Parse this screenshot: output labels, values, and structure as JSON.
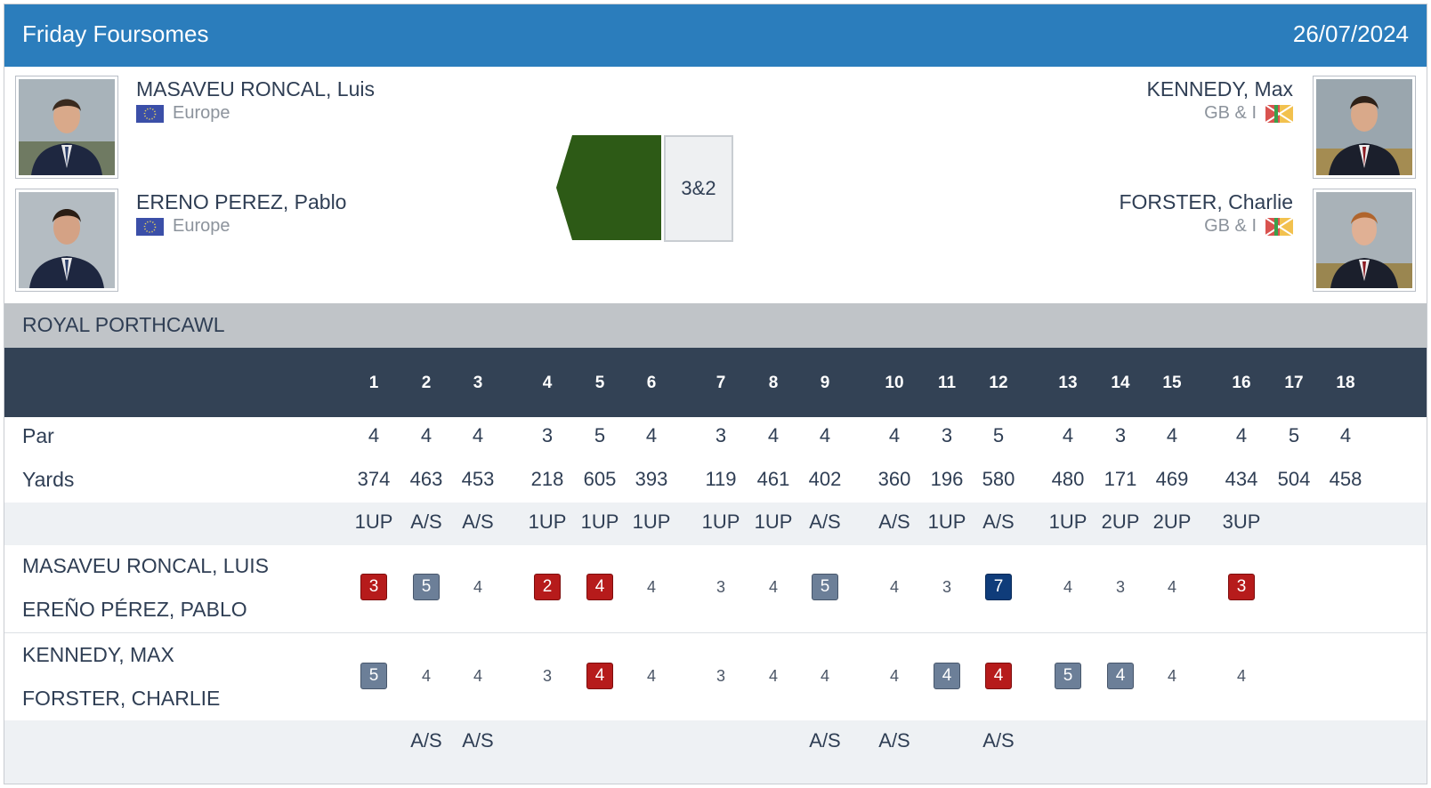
{
  "header": {
    "title": "Friday Foursomes",
    "date": "26/07/2024"
  },
  "team_left": {
    "players": [
      {
        "name": "MASAVEU RONCAL, Luis",
        "team": "Europe",
        "flag": "eu-flag"
      },
      {
        "name": "ERENO PEREZ, Pablo",
        "team": "Europe",
        "flag": "eu-flag"
      }
    ]
  },
  "team_right": {
    "players": [
      {
        "name": "KENNEDY, Max",
        "team": "GB & I",
        "flag": "gbi-flag"
      },
      {
        "name": "FORSTER, Charlie",
        "team": "GB & I",
        "flag": "gbi-flag"
      }
    ]
  },
  "result": {
    "text": "3&2",
    "color": "#2d5a16"
  },
  "course": "ROYAL PORTHCAWL",
  "scorecard": {
    "holes": [
      "1",
      "2",
      "3",
      "4",
      "5",
      "6",
      "7",
      "8",
      "9",
      "10",
      "11",
      "12",
      "13",
      "14",
      "15",
      "16",
      "17",
      "18"
    ],
    "par_label": "Par",
    "par": [
      "4",
      "4",
      "4",
      "3",
      "5",
      "4",
      "3",
      "4",
      "4",
      "4",
      "3",
      "5",
      "4",
      "3",
      "4",
      "4",
      "5",
      "4"
    ],
    "yards_label": "Yards",
    "yards": [
      "374",
      "463",
      "453",
      "218",
      "605",
      "393",
      "119",
      "461",
      "402",
      "360",
      "196",
      "580",
      "480",
      "171",
      "469",
      "434",
      "504",
      "458"
    ],
    "status_top": [
      "1UP",
      "A/S",
      "A/S",
      "1UP",
      "1UP",
      "1UP",
      "1UP",
      "1UP",
      "A/S",
      "A/S",
      "1UP",
      "A/S",
      "1UP",
      "2UP",
      "2UP",
      "3UP",
      "",
      ""
    ],
    "team1_names": [
      "MASAVEU RONCAL, LUIS",
      "EREÑO PÉREZ, PABLO"
    ],
    "team1_scores": [
      {
        "v": "3",
        "s": "red"
      },
      {
        "v": "5",
        "s": "grey"
      },
      {
        "v": "4",
        "s": ""
      },
      {
        "v": "2",
        "s": "red"
      },
      {
        "v": "4",
        "s": "red"
      },
      {
        "v": "4",
        "s": ""
      },
      {
        "v": "3",
        "s": ""
      },
      {
        "v": "4",
        "s": ""
      },
      {
        "v": "5",
        "s": "grey"
      },
      {
        "v": "4",
        "s": ""
      },
      {
        "v": "3",
        "s": ""
      },
      {
        "v": "7",
        "s": "navy"
      },
      {
        "v": "4",
        "s": ""
      },
      {
        "v": "3",
        "s": ""
      },
      {
        "v": "4",
        "s": ""
      },
      {
        "v": "3",
        "s": "red"
      },
      {
        "v": "",
        "s": ""
      },
      {
        "v": "",
        "s": ""
      }
    ],
    "team2_names": [
      "KENNEDY, MAX",
      "FORSTER, CHARLIE"
    ],
    "team2_scores": [
      {
        "v": "5",
        "s": "grey"
      },
      {
        "v": "4",
        "s": ""
      },
      {
        "v": "4",
        "s": ""
      },
      {
        "v": "3",
        "s": ""
      },
      {
        "v": "4",
        "s": "red"
      },
      {
        "v": "4",
        "s": ""
      },
      {
        "v": "3",
        "s": ""
      },
      {
        "v": "4",
        "s": ""
      },
      {
        "v": "4",
        "s": ""
      },
      {
        "v": "4",
        "s": ""
      },
      {
        "v": "4",
        "s": "grey"
      },
      {
        "v": "4",
        "s": "red"
      },
      {
        "v": "5",
        "s": "grey"
      },
      {
        "v": "4",
        "s": "grey"
      },
      {
        "v": "4",
        "s": ""
      },
      {
        "v": "4",
        "s": ""
      },
      {
        "v": "",
        "s": ""
      },
      {
        "v": "",
        "s": ""
      }
    ],
    "status_bottom": [
      "",
      "A/S",
      "A/S",
      "",
      "",
      "",
      "",
      "",
      "A/S",
      "A/S",
      "",
      "A/S",
      "",
      "",
      "",
      "",
      "",
      ""
    ]
  },
  "colors": {
    "header": "#2b7dbc",
    "holes_header": "#334255",
    "birdie": "#b61b1b",
    "bogey": "#6c7f98",
    "double_bogey": "#0f3c7a"
  }
}
